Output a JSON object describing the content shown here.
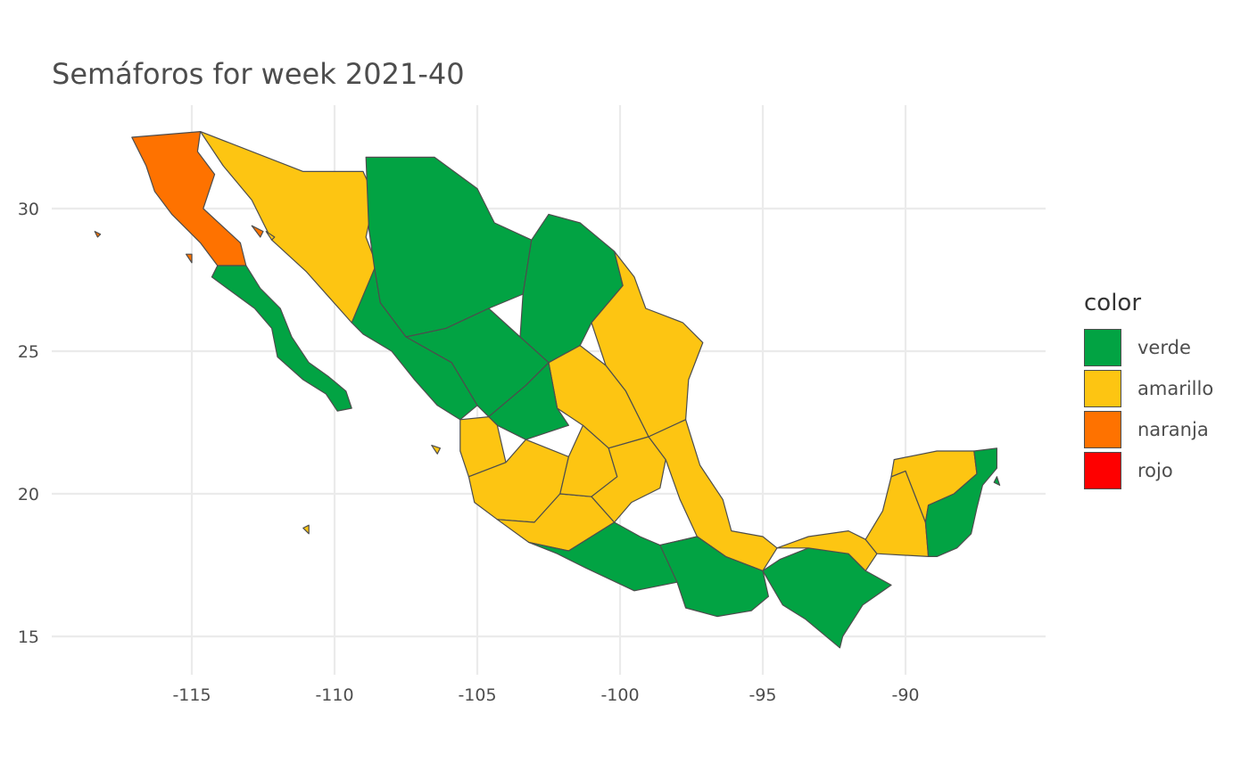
{
  "title": "Semáforos for week 2021-40",
  "colors": {
    "verde": "#02a343",
    "amarillo": "#fdc512",
    "naranja": "#fe7200",
    "rojo": "#fe0000",
    "outline": "#4d4d4d",
    "grid": "#ebebeb"
  },
  "axes": {
    "x_ticks": [
      -115,
      -110,
      -105,
      -100,
      -95,
      -90
    ],
    "y_ticks": [
      15,
      20,
      25,
      30
    ],
    "x_range": [
      -118.8,
      -84.0
    ],
    "y_range": [
      14.2,
      33.5
    ]
  },
  "legend": {
    "title": "color",
    "items": [
      {
        "label": "verde",
        "color": "#02a343"
      },
      {
        "label": "amarillo",
        "color": "#fdc512"
      },
      {
        "label": "naranja",
        "color": "#fe7200"
      },
      {
        "label": "rojo",
        "color": "#fe0000"
      }
    ]
  },
  "regions": [
    {
      "status": "naranja",
      "coords": [
        [
          -117.1,
          32.5
        ],
        [
          -114.7,
          32.7
        ],
        [
          -114.8,
          32.0
        ],
        [
          -114.2,
          31.2
        ],
        [
          -114.6,
          30.0
        ],
        [
          -113.3,
          28.8
        ],
        [
          -113.1,
          28.0
        ],
        [
          -114.1,
          28.0
        ],
        [
          -114.7,
          28.8
        ],
        [
          -115.7,
          29.8
        ],
        [
          -116.3,
          30.6
        ],
        [
          -116.6,
          31.5
        ],
        [
          -117.1,
          32.5
        ]
      ]
    },
    {
      "status": "verde",
      "coords": [
        [
          -114.1,
          28.0
        ],
        [
          -113.1,
          28.0
        ],
        [
          -112.6,
          27.2
        ],
        [
          -111.9,
          26.5
        ],
        [
          -111.5,
          25.5
        ],
        [
          -110.9,
          24.6
        ],
        [
          -110.2,
          24.1
        ],
        [
          -109.6,
          23.6
        ],
        [
          -109.4,
          23.0
        ],
        [
          -109.9,
          22.9
        ],
        [
          -110.3,
          23.5
        ],
        [
          -111.1,
          24.0
        ],
        [
          -112.0,
          24.8
        ],
        [
          -112.2,
          25.8
        ],
        [
          -112.8,
          26.5
        ],
        [
          -114.3,
          27.6
        ],
        [
          -114.1,
          28.0
        ]
      ]
    },
    {
      "status": "amarillo",
      "coords": [
        [
          -114.7,
          32.7
        ],
        [
          -111.1,
          31.3
        ],
        [
          -109.0,
          31.3
        ],
        [
          -108.6,
          30.4
        ],
        [
          -108.9,
          29.0
        ],
        [
          -108.4,
          27.7
        ],
        [
          -109.0,
          26.5
        ],
        [
          -109.4,
          26.0
        ],
        [
          -110.2,
          26.9
        ],
        [
          -111.0,
          27.8
        ],
        [
          -112.2,
          28.9
        ],
        [
          -112.9,
          30.3
        ],
        [
          -113.9,
          31.5
        ],
        [
          -114.7,
          32.7
        ]
      ]
    },
    {
      "status": "verde",
      "coords": [
        [
          -108.9,
          31.8
        ],
        [
          -106.5,
          31.8
        ],
        [
          -105.0,
          30.7
        ],
        [
          -104.4,
          29.5
        ],
        [
          -103.1,
          28.9
        ],
        [
          -103.4,
          27.0
        ],
        [
          -104.6,
          26.5
        ],
        [
          -106.1,
          25.8
        ],
        [
          -107.5,
          25.5
        ],
        [
          -108.4,
          26.7
        ],
        [
          -108.6,
          27.9
        ],
        [
          -108.8,
          29.3
        ],
        [
          -108.9,
          31.8
        ]
      ]
    },
    {
      "status": "verde",
      "coords": [
        [
          -103.1,
          28.9
        ],
        [
          -102.5,
          29.8
        ],
        [
          -101.4,
          29.5
        ],
        [
          -100.2,
          28.5
        ],
        [
          -99.9,
          27.3
        ],
        [
          -101.0,
          26.0
        ],
        [
          -101.4,
          25.2
        ],
        [
          -102.5,
          24.6
        ],
        [
          -103.5,
          25.5
        ],
        [
          -103.4,
          27.0
        ],
        [
          -103.1,
          28.9
        ]
      ]
    },
    {
      "status": "verde",
      "coords": [
        [
          -106.1,
          25.8
        ],
        [
          -104.6,
          26.5
        ],
        [
          -103.5,
          25.5
        ],
        [
          -102.5,
          24.6
        ],
        [
          -103.3,
          23.8
        ],
        [
          -104.6,
          22.7
        ],
        [
          -105.0,
          23.1
        ],
        [
          -105.9,
          24.6
        ],
        [
          -107.5,
          25.5
        ],
        [
          -106.1,
          25.8
        ]
      ]
    },
    {
      "status": "verde",
      "coords": [
        [
          -109.4,
          26.0
        ],
        [
          -108.6,
          27.9
        ],
        [
          -108.4,
          26.7
        ],
        [
          -107.5,
          25.5
        ],
        [
          -105.9,
          24.6
        ],
        [
          -105.0,
          23.1
        ],
        [
          -105.6,
          22.6
        ],
        [
          -106.4,
          23.1
        ],
        [
          -107.2,
          24.0
        ],
        [
          -108.0,
          25.0
        ],
        [
          -109.0,
          25.6
        ],
        [
          -109.4,
          26.0
        ]
      ]
    },
    {
      "status": "amarillo",
      "coords": [
        [
          -100.2,
          28.5
        ],
        [
          -99.5,
          27.6
        ],
        [
          -99.1,
          26.5
        ],
        [
          -97.8,
          26.0
        ],
        [
          -97.1,
          25.3
        ],
        [
          -97.6,
          24.0
        ],
        [
          -97.7,
          22.6
        ],
        [
          -99.0,
          22.0
        ],
        [
          -99.8,
          23.6
        ],
        [
          -100.5,
          24.5
        ],
        [
          -101.0,
          26.0
        ],
        [
          -99.9,
          27.3
        ],
        [
          -100.2,
          28.5
        ]
      ]
    },
    {
      "status": "amarillo",
      "coords": [
        [
          -101.4,
          25.2
        ],
        [
          -100.5,
          24.5
        ],
        [
          -99.8,
          23.6
        ],
        [
          -99.0,
          22.0
        ],
        [
          -100.4,
          21.6
        ],
        [
          -101.3,
          22.4
        ],
        [
          -102.2,
          23.0
        ],
        [
          -102.5,
          24.6
        ],
        [
          -101.4,
          25.2
        ]
      ]
    },
    {
      "status": "verde",
      "coords": [
        [
          -102.5,
          24.6
        ],
        [
          -102.2,
          23.0
        ],
        [
          -101.8,
          22.4
        ],
        [
          -103.3,
          21.9
        ],
        [
          -104.3,
          22.4
        ],
        [
          -104.6,
          22.7
        ],
        [
          -103.3,
          23.8
        ],
        [
          -102.5,
          24.6
        ]
      ]
    },
    {
      "status": "amarillo",
      "coords": [
        [
          -105.6,
          22.6
        ],
        [
          -104.6,
          22.7
        ],
        [
          -104.3,
          22.4
        ],
        [
          -104.0,
          21.1
        ],
        [
          -105.3,
          20.6
        ],
        [
          -105.6,
          21.5
        ],
        [
          -105.6,
          22.6
        ]
      ]
    },
    {
      "status": "amarillo",
      "coords": [
        [
          -105.3,
          20.6
        ],
        [
          -104.0,
          21.1
        ],
        [
          -103.3,
          21.9
        ],
        [
          -101.8,
          21.3
        ],
        [
          -102.1,
          20.0
        ],
        [
          -103.0,
          19.0
        ],
        [
          -104.3,
          19.1
        ],
        [
          -105.1,
          19.7
        ],
        [
          -105.3,
          20.6
        ]
      ]
    },
    {
      "status": "amarillo",
      "coords": [
        [
          -104.3,
          19.1
        ],
        [
          -103.0,
          19.0
        ],
        [
          -102.1,
          20.0
        ],
        [
          -101.0,
          19.9
        ],
        [
          -100.2,
          19.0
        ],
        [
          -101.8,
          18.0
        ],
        [
          -103.2,
          18.3
        ],
        [
          -104.3,
          19.1
        ]
      ]
    },
    {
      "status": "amarillo",
      "coords": [
        [
          -101.8,
          21.3
        ],
        [
          -101.3,
          22.4
        ],
        [
          -100.4,
          21.6
        ],
        [
          -100.1,
          20.6
        ],
        [
          -101.0,
          19.9
        ],
        [
          -102.1,
          20.0
        ],
        [
          -101.8,
          21.3
        ]
      ]
    },
    {
      "status": "amarillo",
      "coords": [
        [
          -100.4,
          21.6
        ],
        [
          -99.0,
          22.0
        ],
        [
          -98.4,
          21.2
        ],
        [
          -98.6,
          20.2
        ],
        [
          -99.6,
          19.7
        ],
        [
          -100.2,
          19.0
        ],
        [
          -101.0,
          19.9
        ],
        [
          -100.1,
          20.6
        ],
        [
          -100.4,
          21.6
        ]
      ]
    },
    {
      "status": "amarillo",
      "coords": [
        [
          -99.0,
          22.0
        ],
        [
          -97.7,
          22.6
        ],
        [
          -97.2,
          21.0
        ],
        [
          -96.4,
          19.8
        ],
        [
          -96.1,
          18.7
        ],
        [
          -95.0,
          18.5
        ],
        [
          -94.5,
          18.1
        ],
        [
          -95.0,
          17.3
        ],
        [
          -96.3,
          17.8
        ],
        [
          -97.3,
          18.5
        ],
        [
          -97.9,
          19.8
        ],
        [
          -98.4,
          21.2
        ],
        [
          -99.0,
          22.0
        ]
      ]
    },
    {
      "status": "verde",
      "coords": [
        [
          -103.2,
          18.3
        ],
        [
          -101.8,
          18.0
        ],
        [
          -100.2,
          19.0
        ],
        [
          -99.3,
          18.5
        ],
        [
          -98.6,
          18.2
        ],
        [
          -97.3,
          18.5
        ],
        [
          -96.3,
          17.8
        ],
        [
          -98.0,
          16.9
        ],
        [
          -99.5,
          16.6
        ],
        [
          -101.2,
          17.4
        ],
        [
          -102.2,
          17.9
        ],
        [
          -103.2,
          18.3
        ]
      ]
    },
    {
      "status": "verde",
      "coords": [
        [
          -98.6,
          18.2
        ],
        [
          -97.3,
          18.5
        ],
        [
          -96.3,
          17.8
        ],
        [
          -95.0,
          17.3
        ],
        [
          -94.8,
          16.4
        ],
        [
          -95.4,
          15.9
        ],
        [
          -96.6,
          15.7
        ],
        [
          -97.7,
          16.0
        ],
        [
          -98.0,
          16.9
        ],
        [
          -98.6,
          18.2
        ]
      ]
    },
    {
      "status": "verde",
      "coords": [
        [
          -95.0,
          17.3
        ],
        [
          -94.4,
          17.7
        ],
        [
          -93.4,
          18.1
        ],
        [
          -92.0,
          17.9
        ],
        [
          -91.4,
          17.3
        ],
        [
          -90.5,
          16.8
        ],
        [
          -91.5,
          16.1
        ],
        [
          -92.2,
          15.0
        ],
        [
          -92.3,
          14.6
        ],
        [
          -93.5,
          15.6
        ],
        [
          -94.3,
          16.1
        ],
        [
          -95.0,
          17.3
        ]
      ]
    },
    {
      "status": "amarillo",
      "coords": [
        [
          -94.5,
          18.1
        ],
        [
          -93.4,
          18.5
        ],
        [
          -92.0,
          18.7
        ],
        [
          -91.4,
          18.4
        ],
        [
          -91.0,
          17.9
        ],
        [
          -91.4,
          17.3
        ],
        [
          -92.0,
          17.9
        ],
        [
          -93.4,
          18.1
        ],
        [
          -94.5,
          18.1
        ]
      ]
    },
    {
      "status": "amarillo",
      "coords": [
        [
          -91.4,
          18.4
        ],
        [
          -90.8,
          19.4
        ],
        [
          -90.5,
          20.6
        ],
        [
          -90.0,
          20.8
        ],
        [
          -89.3,
          19.0
        ],
        [
          -89.2,
          17.8
        ],
        [
          -91.0,
          17.9
        ],
        [
          -91.4,
          18.4
        ]
      ]
    },
    {
      "status": "amarillo",
      "coords": [
        [
          -90.5,
          20.6
        ],
        [
          -90.4,
          21.2
        ],
        [
          -88.9,
          21.5
        ],
        [
          -87.6,
          21.5
        ],
        [
          -87.5,
          20.7
        ],
        [
          -88.3,
          20.0
        ],
        [
          -89.2,
          19.6
        ],
        [
          -89.3,
          19.0
        ],
        [
          -90.0,
          20.8
        ],
        [
          -90.5,
          20.6
        ]
      ]
    },
    {
      "status": "verde",
      "coords": [
        [
          -87.6,
          21.5
        ],
        [
          -86.8,
          21.6
        ],
        [
          -86.8,
          20.9
        ],
        [
          -87.3,
          20.3
        ],
        [
          -87.5,
          19.5
        ],
        [
          -87.7,
          18.6
        ],
        [
          -88.2,
          18.1
        ],
        [
          -88.9,
          17.8
        ],
        [
          -89.2,
          17.8
        ],
        [
          -89.3,
          19.0
        ],
        [
          -89.2,
          19.6
        ],
        [
          -88.3,
          20.0
        ],
        [
          -87.5,
          20.7
        ],
        [
          -87.6,
          21.5
        ]
      ]
    },
    {
      "status": "naranja",
      "coords": [
        [
          -118.4,
          29.2
        ],
        [
          -118.3,
          29.0
        ],
        [
          -118.2,
          29.1
        ],
        [
          -118.4,
          29.2
        ]
      ]
    },
    {
      "status": "naranja",
      "coords": [
        [
          -112.9,
          29.4
        ],
        [
          -112.6,
          29.0
        ],
        [
          -112.5,
          29.2
        ],
        [
          -112.9,
          29.4
        ]
      ]
    },
    {
      "status": "naranja",
      "coords": [
        [
          -115.2,
          28.4
        ],
        [
          -115.0,
          28.1
        ],
        [
          -115.0,
          28.4
        ],
        [
          -115.2,
          28.4
        ]
      ]
    },
    {
      "status": "amarillo",
      "coords": [
        [
          -112.4,
          29.2
        ],
        [
          -112.2,
          28.9
        ],
        [
          -112.1,
          29.0
        ],
        [
          -112.4,
          29.2
        ]
      ]
    },
    {
      "status": "amarillo",
      "coords": [
        [
          -106.6,
          21.7
        ],
        [
          -106.4,
          21.4
        ],
        [
          -106.3,
          21.6
        ],
        [
          -106.6,
          21.7
        ]
      ]
    },
    {
      "status": "amarillo",
      "coords": [
        [
          -111.1,
          18.8
        ],
        [
          -110.9,
          18.6
        ],
        [
          -110.9,
          18.9
        ],
        [
          -111.1,
          18.8
        ]
      ]
    },
    {
      "status": "verde",
      "coords": [
        [
          -86.8,
          20.6
        ],
        [
          -86.7,
          20.3
        ],
        [
          -86.9,
          20.4
        ],
        [
          -86.8,
          20.6
        ]
      ]
    }
  ]
}
